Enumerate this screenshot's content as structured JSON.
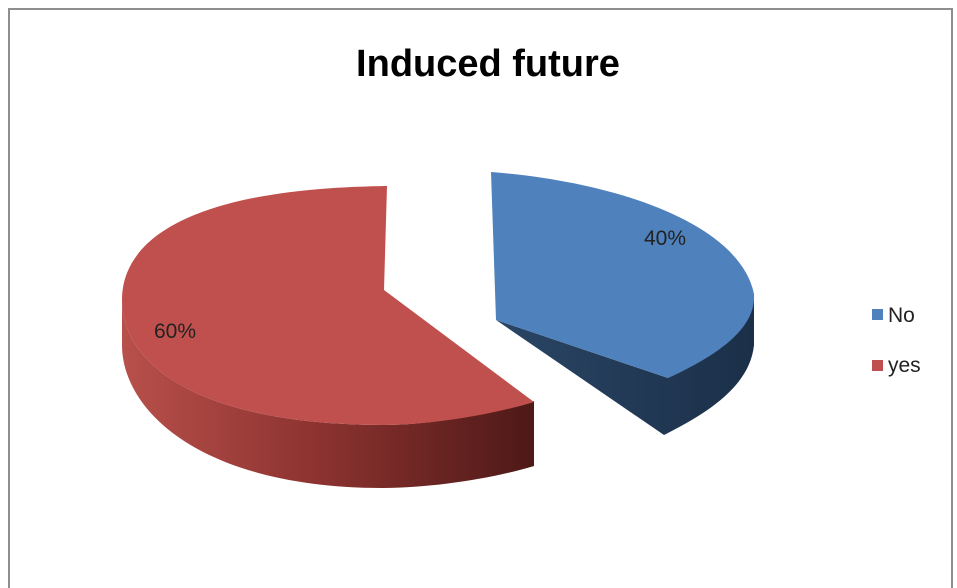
{
  "chart_data": {
    "type": "pie",
    "title": "Induced future",
    "categories": [
      "No",
      "yes"
    ],
    "values": [
      40,
      60
    ],
    "data_labels": [
      "40%",
      "60%"
    ],
    "colors": [
      "#4f81bd",
      "#c0504d"
    ],
    "side_colors": [
      "#243f60",
      "#7a2b29"
    ],
    "legend_position": "right",
    "exploded": true,
    "style": "3d"
  }
}
